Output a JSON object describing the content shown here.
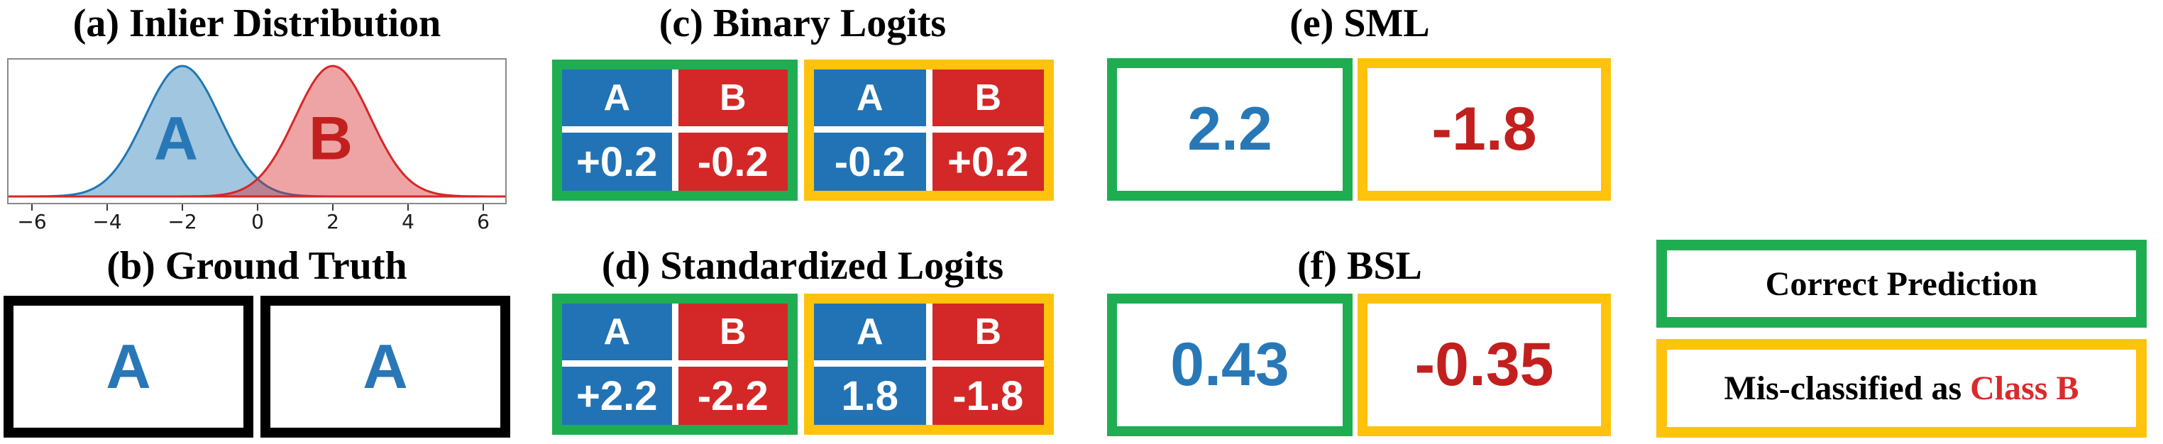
{
  "colors": {
    "correct_green": "#1FAD52",
    "misclassified_yellow": "#FFC20D",
    "class_a_blue": "#2173B5",
    "class_b_red": "#D32827",
    "value_blue": "#2878B8",
    "value_red": "#C2201F",
    "legend_class_b_red": "#DA2A2D",
    "curve_blue": "#1F77B4",
    "curve_red": "#D62728"
  },
  "panel_a": {
    "title": "(a) Inlier Distribution",
    "chart_data": {
      "type": "area",
      "description": "Two overlapping Gaussian class densities for classes A and B",
      "series": [
        {
          "name": "A",
          "mean": -2,
          "sigma": 1,
          "peak": 1.0,
          "color": "#1F77B4"
        },
        {
          "name": "B",
          "mean": 2,
          "sigma": 1,
          "peak": 1.0,
          "color": "#D62728"
        }
      ],
      "xticks": [
        -6,
        -4,
        -2,
        0,
        2,
        4,
        6
      ],
      "xtick_labels": [
        "−6",
        "−4",
        "−2",
        "0",
        "2",
        "4",
        "6"
      ],
      "xlim": [
        -6.6,
        6.6
      ],
      "ylim": [
        0,
        1.08
      ],
      "grid": false,
      "legend_position": "none"
    }
  },
  "panel_b": {
    "title": "(b) Ground Truth",
    "samples": [
      {
        "label": "A"
      },
      {
        "label": "A"
      }
    ]
  },
  "panel_c": {
    "title": "(c) Binary Logits",
    "tables": [
      {
        "status": "correct",
        "col_headers": [
          "A",
          "B"
        ],
        "values": [
          "+0.2",
          "-0.2"
        ]
      },
      {
        "status": "misclassified",
        "col_headers": [
          "A",
          "B"
        ],
        "values": [
          "-0.2",
          "+0.2"
        ]
      }
    ]
  },
  "panel_d": {
    "title": "(d) Standardized Logits",
    "tables": [
      {
        "status": "correct",
        "col_headers": [
          "A",
          "B"
        ],
        "values": [
          "+2.2",
          "-2.2"
        ]
      },
      {
        "status": "misclassified",
        "col_headers": [
          "A",
          "B"
        ],
        "values": [
          "1.8",
          "-1.8"
        ]
      }
    ]
  },
  "panel_e": {
    "title": "(e) SML",
    "scores": [
      {
        "status": "correct",
        "value": "2.2"
      },
      {
        "status": "misclassified",
        "value": "-1.8"
      }
    ]
  },
  "panel_f": {
    "title": "(f) BSL",
    "scores": [
      {
        "status": "correct",
        "value": "0.43"
      },
      {
        "status": "misclassified",
        "value": "-0.35"
      }
    ]
  },
  "legend": {
    "correct_label": "Correct Prediction",
    "misclassified_prefix": "Mis-classified as ",
    "misclassified_class": "Class B"
  }
}
